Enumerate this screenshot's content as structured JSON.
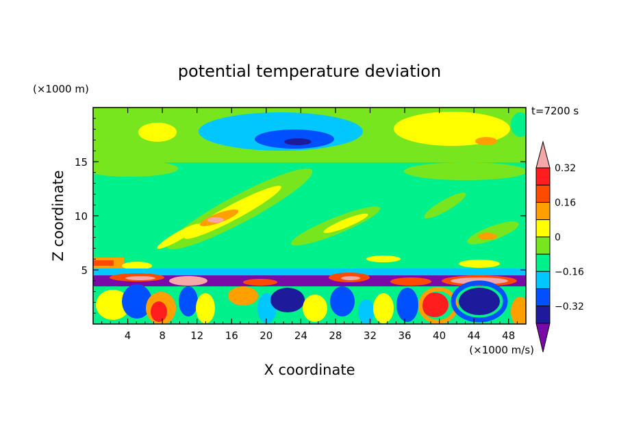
{
  "chart_data": {
    "type": "heatmap",
    "title": "potential temperature deviation",
    "time_label": "t=7200 s",
    "xlabel": "X coordinate",
    "ylabel": "Z coordinate",
    "x_unit": "(×1000 m/s)",
    "y_unit": "(×1000 m)",
    "xlim": [
      0,
      50
    ],
    "ylim": [
      0,
      20
    ],
    "x_ticks": [
      4,
      8,
      12,
      16,
      20,
      24,
      28,
      32,
      36,
      40,
      44,
      48
    ],
    "y_ticks": [
      5,
      10,
      15
    ],
    "colorbar": {
      "levels": [
        -0.48,
        -0.4,
        -0.32,
        -0.24,
        -0.16,
        -0.08,
        0,
        0.08,
        0.16,
        0.24,
        0.32,
        0.4
      ],
      "labels": [
        "0.32",
        "0.16",
        "0",
        "−0.16",
        "−0.32"
      ],
      "label_values": [
        0.32,
        0.16,
        0,
        -0.16,
        -0.32
      ],
      "colors": [
        "#7a0aa8",
        "#1e1a9c",
        "#0050ff",
        "#00c8ff",
        "#00f08c",
        "#78e61e",
        "#ffff00",
        "#ffa000",
        "#ff4a00",
        "#ff1e1e",
        "#f4a8a8"
      ],
      "extend": "both"
    },
    "colors": {
      "background_field": "#00f08c",
      "upper_field": "#78e61e"
    }
  }
}
